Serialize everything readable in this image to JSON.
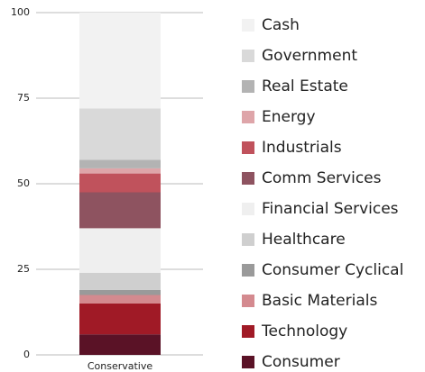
{
  "chart_data": {
    "type": "stacked_bar",
    "categories": [
      "Conservative"
    ],
    "ylim": [
      0,
      100
    ],
    "yticks": [
      0,
      25,
      50,
      75,
      100
    ],
    "grid": true,
    "series": [
      {
        "name": "Consumer",
        "color": "#5a1226",
        "values": [
          6
        ]
      },
      {
        "name": "Technology",
        "color": "#a01a26",
        "values": [
          9
        ]
      },
      {
        "name": "Basic Materials",
        "color": "#d48a8f",
        "values": [
          2.5
        ]
      },
      {
        "name": "Consumer Cyclical",
        "color": "#9a9a9a",
        "values": [
          1.5
        ]
      },
      {
        "name": "Healthcare",
        "color": "#cfcfcf",
        "values": [
          5
        ]
      },
      {
        "name": "Financial Services",
        "color": "#efefef",
        "values": [
          13
        ]
      },
      {
        "name": "Comm Services",
        "color": "#8e5360",
        "values": [
          10.5
        ]
      },
      {
        "name": "Industrials",
        "color": "#c0525c",
        "values": [
          5.5
        ]
      },
      {
        "name": "Energy",
        "color": "#dea5a9",
        "values": [
          1.5
        ]
      },
      {
        "name": "Real Estate",
        "color": "#b3b3b3",
        "values": [
          2.5
        ]
      },
      {
        "name": "Government",
        "color": "#d9d9d9",
        "values": [
          15
        ]
      },
      {
        "name": "Cash",
        "color": "#f2f2f2",
        "values": [
          28
        ]
      }
    ]
  }
}
